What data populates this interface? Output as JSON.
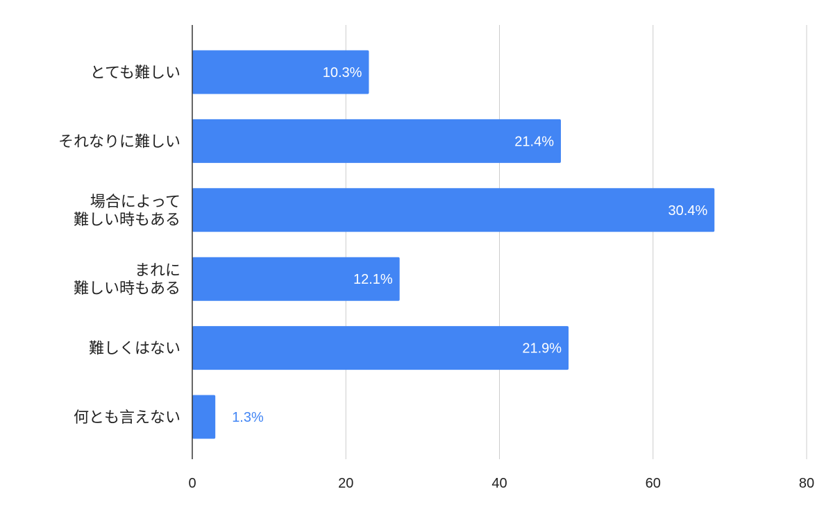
{
  "chart_data": {
    "type": "bar",
    "orientation": "horizontal",
    "categories": [
      [
        "とても難しい"
      ],
      [
        "それなりに難しい"
      ],
      [
        "場合によって",
        "難しい時もある"
      ],
      [
        "まれに",
        "難しい時もある"
      ],
      [
        "難しくはない"
      ],
      [
        "何とも言えない"
      ]
    ],
    "values": [
      23,
      48,
      68,
      27,
      49,
      3
    ],
    "data_labels": [
      "10.3%",
      "21.4%",
      "30.4%",
      "12.1%",
      "21.9%",
      "1.3%"
    ],
    "xlim": [
      0,
      80
    ],
    "xticks": [
      0,
      20,
      40,
      60,
      80
    ],
    "tick_labels": [
      "0",
      "20",
      "40",
      "60",
      "80"
    ],
    "grid": true,
    "bar_color": "#4285f4",
    "label_inside_color": "#ffffff",
    "label_outside_color": "#4285f4",
    "gridline_color": "#cccccc",
    "axis_color": "#333333"
  }
}
